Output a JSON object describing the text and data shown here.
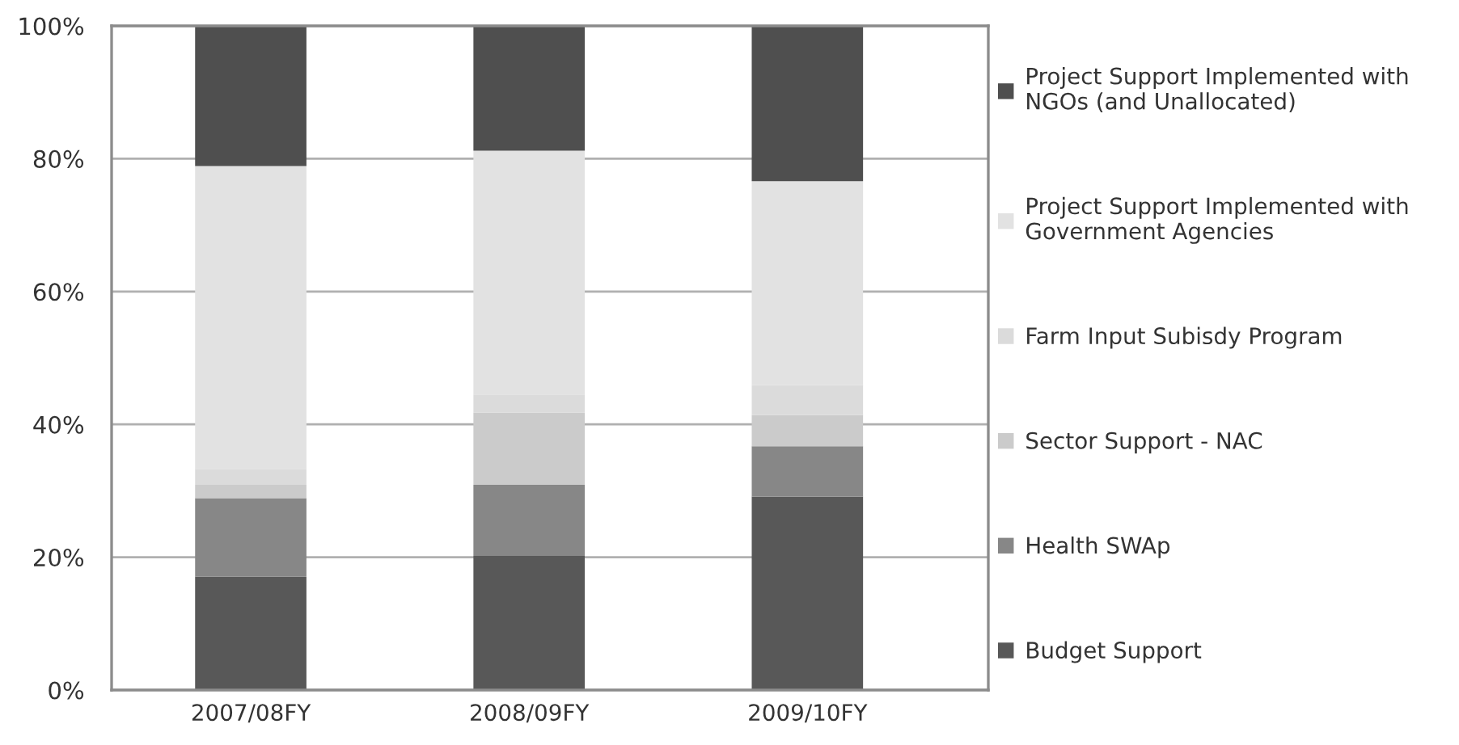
{
  "chart_data": {
    "type": "bar",
    "stacked": true,
    "categories": [
      "2007/08FY",
      "2008/09FY",
      "2009/10FY"
    ],
    "series": [
      {
        "name": "Budget Support",
        "color": "#585858",
        "values": [
          17.1,
          20.2,
          29.1
        ]
      },
      {
        "name": "Health SWAp",
        "color": "#878787",
        "values": [
          11.8,
          10.7,
          7.6
        ]
      },
      {
        "name": "Sector Support - NAC",
        "color": "#cbcbcb",
        "values": [
          2.0,
          10.9,
          4.7
        ]
      },
      {
        "name": "Farm Input Subisdy Program",
        "color": "#dbdbdb",
        "values": [
          2.4,
          2.7,
          4.5
        ]
      },
      {
        "name": "Project Support Implemented with Government Agencies",
        "color": "#e2e2e2",
        "values": [
          45.6,
          36.7,
          30.7
        ]
      },
      {
        "name": "Project Support Implemented with NGOs (and Unallocated)",
        "color": "#4f4f4f",
        "values": [
          21.1,
          18.8,
          23.4
        ]
      }
    ],
    "ylim": [
      0,
      100
    ],
    "yticks": [
      {
        "value": 0,
        "label": "0%"
      },
      {
        "value": 20,
        "label": "20%"
      },
      {
        "value": 40,
        "label": "40%"
      },
      {
        "value": 60,
        "label": "60%"
      },
      {
        "value": 80,
        "label": "80%"
      },
      {
        "value": 100,
        "label": "100%"
      }
    ],
    "grid": "y",
    "legend": "right"
  }
}
